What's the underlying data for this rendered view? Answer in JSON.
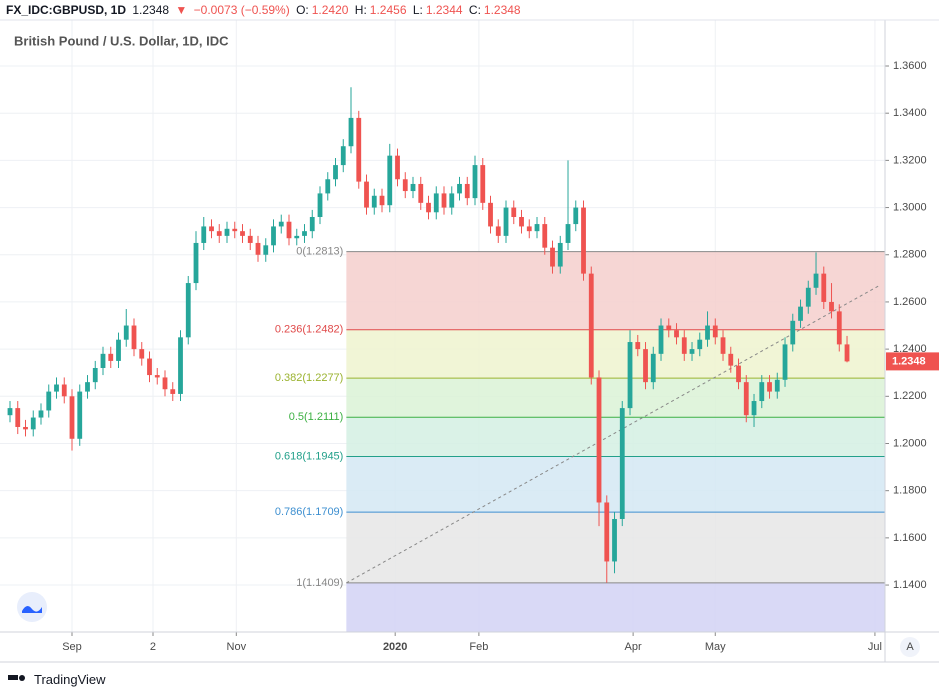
{
  "chart_data": {
    "type": "candlestick",
    "title": "British Pound / U.S. Dollar, 1D, IDC",
    "header": {
      "symbol": "FX_IDC:GBPUSD, 1D",
      "last": "1.2348",
      "arrow": "▼",
      "change": "−0.0073 (−0.59%)",
      "ohlc": [
        {
          "label": "O:",
          "value": "1.2420"
        },
        {
          "label": "H:",
          "value": "1.2456"
        },
        {
          "label": "L:",
          "value": "1.2344"
        },
        {
          "label": "C:",
          "value": "1.2348"
        }
      ]
    },
    "brand": "TradingView",
    "scale_button": "A",
    "up_color": "#26a69a",
    "down_color": "#ef5350",
    "grid": true,
    "open": [
      1.212,
      1.215,
      1.207,
      1.206,
      1.211,
      1.214,
      1.222,
      1.225,
      1.22,
      1.202,
      1.222,
      1.226,
      1.232,
      1.238,
      1.235,
      1.244,
      1.25,
      1.24,
      1.236,
      1.229,
      1.228,
      1.223,
      1.221,
      1.245,
      1.268,
      1.285,
      1.292,
      1.29,
      1.288,
      1.291,
      1.29,
      1.288,
      1.285,
      1.28,
      1.284,
      1.292,
      1.294,
      1.287,
      1.288,
      1.29,
      1.296,
      1.306,
      1.312,
      1.318,
      1.326,
      1.338,
      1.311,
      1.3,
      1.305,
      1.301,
      1.322,
      1.312,
      1.307,
      1.31,
      1.302,
      1.298,
      1.306,
      1.3,
      1.306,
      1.31,
      1.304,
      1.318,
      1.302,
      1.292,
      1.288,
      1.3,
      1.296,
      1.292,
      1.29,
      1.293,
      1.283,
      1.275,
      1.285,
      1.293,
      1.3,
      1.272,
      1.228,
      1.175,
      1.15,
      1.168,
      1.215,
      1.243,
      1.24,
      1.226,
      1.238,
      1.25,
      1.248,
      1.245,
      1.238,
      1.24,
      1.244,
      1.25,
      1.245,
      1.238,
      1.233,
      1.226,
      1.212,
      1.218,
      1.226,
      1.222,
      1.227,
      1.242,
      1.252,
      1.258,
      1.266,
      1.272,
      1.26,
      1.256,
      1.242
    ],
    "high": [
      1.218,
      1.218,
      1.21,
      1.214,
      1.217,
      1.225,
      1.228,
      1.228,
      1.223,
      1.225,
      1.229,
      1.235,
      1.241,
      1.241,
      1.247,
      1.257,
      1.253,
      1.243,
      1.239,
      1.232,
      1.231,
      1.226,
      1.248,
      1.271,
      1.29,
      1.296,
      1.295,
      1.293,
      1.294,
      1.294,
      1.293,
      1.291,
      1.288,
      1.287,
      1.295,
      1.297,
      1.297,
      1.291,
      1.293,
      1.299,
      1.309,
      1.315,
      1.321,
      1.329,
      1.351,
      1.341,
      1.314,
      1.308,
      1.308,
      1.327,
      1.325,
      1.315,
      1.313,
      1.313,
      1.305,
      1.309,
      1.309,
      1.309,
      1.313,
      1.313,
      1.322,
      1.321,
      1.305,
      1.295,
      1.303,
      1.303,
      1.299,
      1.295,
      1.296,
      1.296,
      1.286,
      1.288,
      1.32,
      1.303,
      1.303,
      1.275,
      1.231,
      1.178,
      1.171,
      1.218,
      1.248,
      1.246,
      1.243,
      1.241,
      1.253,
      1.253,
      1.251,
      1.248,
      1.243,
      1.247,
      1.256,
      1.253,
      1.248,
      1.241,
      1.236,
      1.229,
      1.221,
      1.229,
      1.229,
      1.23,
      1.245,
      1.255,
      1.261,
      1.269,
      1.281,
      1.275,
      1.268,
      1.259,
      1.2456
    ],
    "low": [
      1.209,
      1.204,
      1.203,
      1.203,
      1.208,
      1.211,
      1.219,
      1.217,
      1.197,
      1.199,
      1.219,
      1.223,
      1.229,
      1.232,
      1.232,
      1.241,
      1.237,
      1.233,
      1.226,
      1.225,
      1.22,
      1.218,
      1.218,
      1.242,
      1.265,
      1.282,
      1.287,
      1.285,
      1.285,
      1.287,
      1.285,
      1.282,
      1.277,
      1.277,
      1.281,
      1.289,
      1.284,
      1.284,
      1.285,
      1.287,
      1.293,
      1.303,
      1.309,
      1.315,
      1.323,
      1.308,
      1.297,
      1.297,
      1.298,
      1.298,
      1.309,
      1.304,
      1.304,
      1.299,
      1.295,
      1.295,
      1.297,
      1.297,
      1.303,
      1.301,
      1.301,
      1.299,
      1.289,
      1.285,
      1.285,
      1.293,
      1.289,
      1.287,
      1.287,
      1.28,
      1.272,
      1.272,
      1.282,
      1.29,
      1.269,
      1.225,
      1.165,
      1.141,
      1.145,
      1.165,
      1.212,
      1.237,
      1.223,
      1.223,
      1.235,
      1.245,
      1.242,
      1.235,
      1.235,
      1.237,
      1.241,
      1.242,
      1.235,
      1.23,
      1.223,
      1.209,
      1.207,
      1.215,
      1.219,
      1.219,
      1.224,
      1.239,
      1.249,
      1.255,
      1.263,
      1.257,
      1.253,
      1.239,
      1.2344
    ],
    "close": [
      1.215,
      1.207,
      1.206,
      1.211,
      1.214,
      1.222,
      1.225,
      1.22,
      1.202,
      1.222,
      1.226,
      1.232,
      1.238,
      1.235,
      1.244,
      1.25,
      1.24,
      1.236,
      1.229,
      1.228,
      1.223,
      1.221,
      1.245,
      1.268,
      1.285,
      1.292,
      1.29,
      1.288,
      1.291,
      1.29,
      1.288,
      1.285,
      1.28,
      1.284,
      1.292,
      1.294,
      1.287,
      1.288,
      1.29,
      1.296,
      1.306,
      1.312,
      1.318,
      1.326,
      1.338,
      1.311,
      1.3,
      1.305,
      1.301,
      1.322,
      1.312,
      1.307,
      1.31,
      1.302,
      1.298,
      1.306,
      1.3,
      1.306,
      1.31,
      1.304,
      1.318,
      1.302,
      1.292,
      1.288,
      1.3,
      1.296,
      1.292,
      1.29,
      1.293,
      1.283,
      1.275,
      1.285,
      1.293,
      1.3,
      1.272,
      1.228,
      1.175,
      1.15,
      1.168,
      1.215,
      1.243,
      1.24,
      1.226,
      1.238,
      1.25,
      1.248,
      1.245,
      1.238,
      1.24,
      1.244,
      1.25,
      1.245,
      1.238,
      1.233,
      1.226,
      1.212,
      1.218,
      1.226,
      1.222,
      1.227,
      1.242,
      1.252,
      1.258,
      1.266,
      1.272,
      1.26,
      1.256,
      1.242,
      1.2348
    ],
    "xlim": [
      -1.29,
      112.9
    ],
    "xticks": [
      {
        "value": 8,
        "label": "Sep"
      },
      {
        "value": 18.45,
        "label": "2"
      },
      {
        "value": 29.2,
        "label": "Nov"
      },
      {
        "value": 49.7,
        "label": "2020"
      },
      {
        "value": 60.5,
        "label": "Feb"
      },
      {
        "value": 80.4,
        "label": "Apr"
      },
      {
        "value": 91,
        "label": "May"
      },
      {
        "value": 111.6,
        "label": "Jul"
      }
    ],
    "ylim": [
      1.1201,
      1.3795
    ],
    "yticks": [
      {
        "value": 1.14,
        "label": "1.1400"
      },
      {
        "value": 1.16,
        "label": "1.1600"
      },
      {
        "value": 1.18,
        "label": "1.1800"
      },
      {
        "value": 1.2,
        "label": "1.2000"
      },
      {
        "value": 1.22,
        "label": "1.2200"
      },
      {
        "value": 1.24,
        "label": "1.2400"
      },
      {
        "value": 1.26,
        "label": "1.2600"
      },
      {
        "value": 1.28,
        "label": "1.2800"
      },
      {
        "value": 1.3,
        "label": "1.3000"
      },
      {
        "value": 1.32,
        "label": "1.3200"
      },
      {
        "value": 1.34,
        "label": "1.3400"
      },
      {
        "value": 1.36,
        "label": "1.3600"
      }
    ],
    "fib": {
      "start": 43.4,
      "levels": [
        {
          "label": "0(1.2813)",
          "value": 1.2813,
          "color": "#888888",
          "fill": "#f5cfcd"
        },
        {
          "label": "0.236(1.2482)",
          "value": 1.2482,
          "color": "#e04a4a",
          "fill": "#eef3cf"
        },
        {
          "label": "0.382(1.2277)",
          "value": 1.2277,
          "color": "#9bb330",
          "fill": "#daf2d6"
        },
        {
          "label": "0.5(1.2111)",
          "value": 1.2111,
          "color": "#3cb043",
          "fill": "#d3f0e3"
        },
        {
          "label": "0.618(1.1945)",
          "value": 1.1945,
          "color": "#22a08a",
          "fill": "#d4e7f3"
        },
        {
          "label": "0.786(1.1709)",
          "value": 1.1709,
          "color": "#3d8fd0",
          "fill": "#e6e6e6"
        },
        {
          "label": "1(1.1409)",
          "value": 1.1409,
          "color": "#888888",
          "fill": "#d2d2f5"
        }
      ]
    },
    "trend_line": {
      "x": [
        43.4,
        112.3
      ],
      "y": [
        1.1409,
        1.2672
      ],
      "color": "#888888"
    }
  }
}
